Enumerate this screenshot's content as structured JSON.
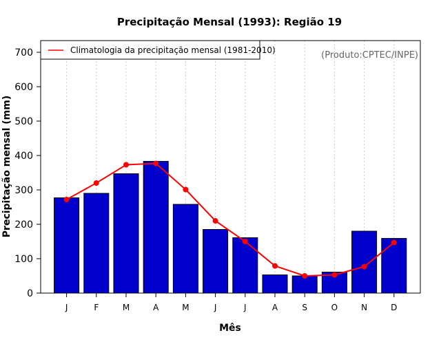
{
  "chart_data": {
    "type": "bar",
    "title": "Precipitação Mensal (1993): Região 19",
    "xlabel": "Mês",
    "ylabel": "Precipitação mensal (mm)",
    "categories": [
      "J",
      "F",
      "M",
      "A",
      "M",
      "J",
      "J",
      "A",
      "S",
      "O",
      "N",
      "D"
    ],
    "ylim": [
      0,
      700
    ],
    "yticks": [
      0,
      100,
      200,
      300,
      400,
      500,
      600,
      700
    ],
    "grid": true,
    "legend_position": "top-left",
    "annotation": "(Produto:CPTEC/INPE)",
    "series": [
      {
        "name": "Precipitação mensal (1993)",
        "type": "bar",
        "color": "#0000CC",
        "values": [
          277,
          290,
          347,
          383,
          258,
          185,
          161,
          53,
          50,
          61,
          180,
          159
        ]
      },
      {
        "name": "Climatologia da precipitação mensal (1981-2010)",
        "type": "line",
        "color": "#FF0000",
        "values": [
          272,
          320,
          373,
          377,
          301,
          210,
          150,
          79,
          50,
          53,
          77,
          147
        ]
      }
    ]
  }
}
